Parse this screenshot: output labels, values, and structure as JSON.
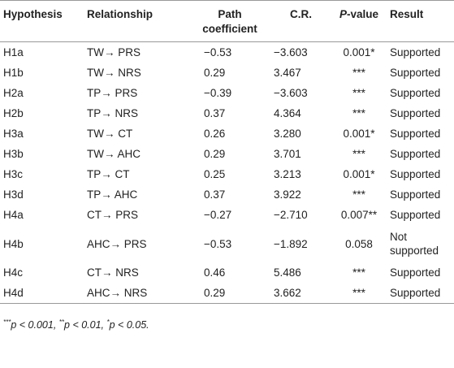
{
  "table": {
    "header": [
      "Hypothesis",
      "Relationship",
      "Path coefficient",
      "C.R.",
      {
        "italic": "P",
        "rest": "-value"
      },
      "Result"
    ],
    "rows": [
      [
        "H1a",
        "TW→ PRS",
        "−0.53",
        "−3.603",
        "0.001*",
        "Supported"
      ],
      [
        "H1b",
        "TW→ NRS",
        "0.29",
        "3.467",
        "***",
        "Supported"
      ],
      [
        "H2a",
        "TP→ PRS",
        "−0.39",
        "−3.603",
        "***",
        "Supported"
      ],
      [
        "H2b",
        "TP→ NRS",
        "0.37",
        "4.364",
        "***",
        "Supported"
      ],
      [
        "H3a",
        "TW→ CT",
        "0.26",
        "3.280",
        "0.001*",
        "Supported"
      ],
      [
        "H3b",
        "TW→ AHC",
        "0.29",
        "3.701",
        "***",
        "Supported"
      ],
      [
        "H3c",
        "TP→ CT",
        "0.25",
        "3.213",
        "0.001*",
        "Supported"
      ],
      [
        "H3d",
        "TP→ AHC",
        "0.37",
        "3.922",
        "***",
        "Supported"
      ],
      [
        "H4a",
        "CT→ PRS",
        "−0.27",
        "−2.710",
        "0.007**",
        "Supported"
      ],
      [
        "H4b",
        "AHC→ PRS",
        "−0.53",
        "−1.892",
        "0.058",
        "Not supported"
      ],
      [
        "H4c",
        "CT→ NRS",
        "0.46",
        "5.486",
        "***",
        "Supported"
      ],
      [
        "H4d",
        "AHC→ NRS",
        "0.29",
        "3.662",
        "***",
        "Supported"
      ]
    ]
  },
  "footnote": [
    {
      "mark": "***",
      "text": "p < 0.001, "
    },
    {
      "mark": "**",
      "text": "p < 0.01, "
    },
    {
      "mark": "*",
      "text": "p < 0.05."
    }
  ]
}
